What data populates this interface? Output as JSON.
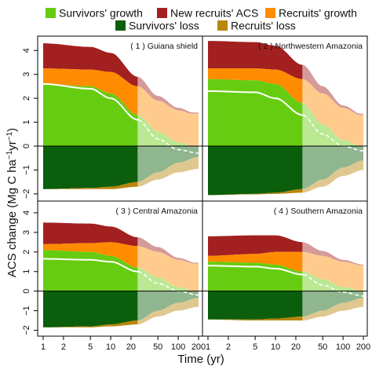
{
  "chart_data": {
    "type": "area",
    "ylabel_main": "ACS change (Mg C ha",
    "ylabel_sup1": "−1",
    "ylabel_mid": "yr",
    "ylabel_sup2": "−1",
    "ylabel_end": ")",
    "xlabel": "Time (yr)",
    "x_scale": "log",
    "xlim": [
      1,
      200
    ],
    "ylim": [
      -2.3,
      4.6
    ],
    "x_ticks": [
      1,
      2,
      5,
      10,
      20,
      50,
      100,
      200
    ],
    "x_tick_labels": [
      "1",
      "2",
      "5",
      "10",
      "20",
      "50",
      "100",
      "200"
    ],
    "y_ticks": [
      -2,
      -1,
      0,
      1,
      2,
      3,
      4
    ],
    "y_tick_labels": [
      "−2",
      "−1",
      "0",
      "1",
      "2",
      "3",
      "4"
    ],
    "projection_start_year": 25,
    "colors": {
      "survivors_growth": "#66cc11",
      "new_recruits_acs": "#a32020",
      "recruits_growth": "#ff8c00",
      "survivors_loss": "#0b5e0b",
      "recruits_loss": "#b8860b",
      "net_line": "#ffffff"
    },
    "legend": [
      {
        "key": "survivors_growth",
        "label": "Survivors' growth"
      },
      {
        "key": "new_recruits_acs",
        "label": "New recruits' ACS"
      },
      {
        "key": "recruits_growth",
        "label": "Recruits' growth"
      },
      {
        "key": "survivors_loss",
        "label": "Survivors' loss"
      },
      {
        "key": "recruits_loss",
        "label": "Recruits' loss"
      }
    ],
    "panels": [
      {
        "title": "( 1 ) Guiana shield",
        "survivors_growth": [
          [
            1,
            2.6
          ],
          [
            5,
            2.5
          ],
          [
            10,
            2.2
          ],
          [
            25,
            1.3
          ],
          [
            50,
            0.6
          ],
          [
            100,
            0.15
          ],
          [
            200,
            -0.1
          ]
        ],
        "recruits_growth": [
          [
            1,
            0.65
          ],
          [
            5,
            0.7
          ],
          [
            10,
            0.9
          ],
          [
            25,
            1.2
          ],
          [
            50,
            1.3
          ],
          [
            100,
            1.35
          ],
          [
            200,
            1.35
          ]
        ],
        "new_recruits_acs": [
          [
            1,
            1.05
          ],
          [
            5,
            0.95
          ],
          [
            10,
            0.8
          ],
          [
            25,
            0.4
          ],
          [
            50,
            0.2
          ],
          [
            100,
            0.1
          ],
          [
            200,
            0.05
          ]
        ],
        "survivors_loss": [
          [
            1,
            -1.8
          ],
          [
            5,
            -1.75
          ],
          [
            10,
            -1.7
          ],
          [
            25,
            -1.5
          ],
          [
            50,
            -1.1
          ],
          [
            100,
            -0.7
          ],
          [
            200,
            -0.45
          ]
        ],
        "recruits_loss": [
          [
            1,
            0.0
          ],
          [
            5,
            -0.05
          ],
          [
            10,
            -0.1
          ],
          [
            25,
            -0.2
          ],
          [
            50,
            -0.3
          ],
          [
            100,
            -0.4
          ],
          [
            200,
            -0.5
          ]
        ],
        "net": [
          [
            1,
            2.6
          ],
          [
            5,
            2.4
          ],
          [
            10,
            2.0
          ],
          [
            25,
            1.1
          ],
          [
            50,
            0.3
          ],
          [
            100,
            -0.15
          ],
          [
            200,
            -0.3
          ]
        ]
      },
      {
        "title": "( 2 ) Northwestern Amazonia",
        "survivors_growth": [
          [
            1,
            2.8
          ],
          [
            5,
            2.75
          ],
          [
            10,
            2.6
          ],
          [
            25,
            1.8
          ],
          [
            50,
            0.9
          ],
          [
            100,
            0.25
          ],
          [
            200,
            -0.05
          ]
        ],
        "recruits_growth": [
          [
            1,
            0.45
          ],
          [
            5,
            0.5
          ],
          [
            10,
            0.6
          ],
          [
            25,
            1.0
          ],
          [
            50,
            1.3
          ],
          [
            100,
            1.35
          ],
          [
            200,
            1.3
          ]
        ],
        "new_recruits_acs": [
          [
            1,
            1.15
          ],
          [
            5,
            1.1
          ],
          [
            10,
            1.0
          ],
          [
            25,
            0.6
          ],
          [
            50,
            0.3
          ],
          [
            100,
            0.1
          ],
          [
            200,
            0.05
          ]
        ],
        "survivors_loss": [
          [
            1,
            -2.05
          ],
          [
            5,
            -2.0
          ],
          [
            10,
            -1.95
          ],
          [
            25,
            -1.8
          ],
          [
            50,
            -1.4
          ],
          [
            100,
            -0.9
          ],
          [
            200,
            -0.6
          ]
        ],
        "recruits_loss": [
          [
            1,
            0.0
          ],
          [
            5,
            -0.02
          ],
          [
            10,
            -0.05
          ],
          [
            25,
            -0.15
          ],
          [
            50,
            -0.3
          ],
          [
            100,
            -0.35
          ],
          [
            200,
            -0.4
          ]
        ],
        "net": [
          [
            1,
            2.3
          ],
          [
            5,
            2.25
          ],
          [
            10,
            2.0
          ],
          [
            25,
            1.3
          ],
          [
            50,
            0.5
          ],
          [
            100,
            0.0
          ],
          [
            200,
            -0.2
          ]
        ]
      },
      {
        "title": "( 3 ) Central Amazonia",
        "survivors_growth": [
          [
            1,
            2.1
          ],
          [
            5,
            2.0
          ],
          [
            10,
            1.8
          ],
          [
            25,
            1.2
          ],
          [
            50,
            0.7
          ],
          [
            100,
            0.2
          ],
          [
            200,
            -0.05
          ]
        ],
        "recruits_growth": [
          [
            1,
            0.3
          ],
          [
            5,
            0.45
          ],
          [
            10,
            0.7
          ],
          [
            25,
            1.1
          ],
          [
            50,
            1.3
          ],
          [
            100,
            1.4
          ],
          [
            200,
            1.4
          ]
        ],
        "new_recruits_acs": [
          [
            1,
            1.1
          ],
          [
            5,
            1.0
          ],
          [
            10,
            0.8
          ],
          [
            25,
            0.45
          ],
          [
            50,
            0.25
          ],
          [
            100,
            0.1
          ],
          [
            200,
            0.05
          ]
        ],
        "survivors_loss": [
          [
            1,
            -1.85
          ],
          [
            5,
            -1.8
          ],
          [
            10,
            -1.7
          ],
          [
            25,
            -1.5
          ],
          [
            50,
            -1.0
          ],
          [
            100,
            -0.6
          ],
          [
            200,
            -0.35
          ]
        ],
        "recruits_loss": [
          [
            1,
            0.0
          ],
          [
            5,
            -0.05
          ],
          [
            10,
            -0.1
          ],
          [
            25,
            -0.2
          ],
          [
            50,
            -0.3
          ],
          [
            100,
            -0.4
          ],
          [
            200,
            -0.45
          ]
        ],
        "net": [
          [
            1,
            1.65
          ],
          [
            5,
            1.6
          ],
          [
            10,
            1.5
          ],
          [
            25,
            1.0
          ],
          [
            50,
            0.4
          ],
          [
            100,
            0.0
          ],
          [
            200,
            -0.2
          ]
        ]
      },
      {
        "title": "( 4 ) Southern Amazonia",
        "survivors_growth": [
          [
            1,
            1.5
          ],
          [
            5,
            1.45
          ],
          [
            10,
            1.35
          ],
          [
            25,
            1.0
          ],
          [
            50,
            0.6
          ],
          [
            100,
            0.2
          ],
          [
            200,
            0.0
          ]
        ],
        "recruits_growth": [
          [
            1,
            0.3
          ],
          [
            5,
            0.45
          ],
          [
            10,
            0.65
          ],
          [
            25,
            1.0
          ],
          [
            50,
            1.2
          ],
          [
            100,
            1.3
          ],
          [
            200,
            1.3
          ]
        ],
        "new_recruits_acs": [
          [
            1,
            1.0
          ],
          [
            5,
            0.95
          ],
          [
            10,
            0.85
          ],
          [
            25,
            0.5
          ],
          [
            50,
            0.25
          ],
          [
            100,
            0.1
          ],
          [
            200,
            0.05
          ]
        ],
        "survivors_loss": [
          [
            1,
            -1.45
          ],
          [
            5,
            -1.45
          ],
          [
            10,
            -1.4
          ],
          [
            25,
            -1.3
          ],
          [
            50,
            -1.0
          ],
          [
            100,
            -0.6
          ],
          [
            200,
            -0.35
          ]
        ],
        "recruits_loss": [
          [
            1,
            0.0
          ],
          [
            5,
            -0.05
          ],
          [
            10,
            -0.1
          ],
          [
            25,
            -0.2
          ],
          [
            50,
            -0.3
          ],
          [
            100,
            -0.4
          ],
          [
            200,
            -0.45
          ]
        ],
        "net": [
          [
            1,
            1.3
          ],
          [
            5,
            1.25
          ],
          [
            10,
            1.15
          ],
          [
            25,
            0.85
          ],
          [
            50,
            0.3
          ],
          [
            100,
            -0.05
          ],
          [
            200,
            -0.25
          ]
        ]
      }
    ]
  }
}
